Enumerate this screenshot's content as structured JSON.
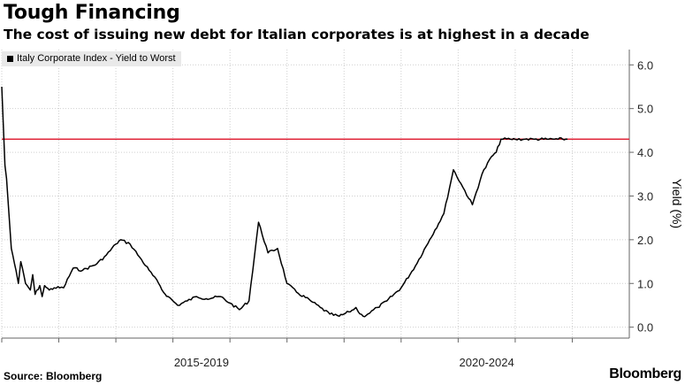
{
  "header": {
    "title": "Tough Financing",
    "subtitle": "The cost of issuing new debt for Italian corporates is at highest in a decade"
  },
  "footer": {
    "source": "Source: Bloomberg",
    "brand": "Bloomberg"
  },
  "colors": {
    "line": "#000000",
    "reference_line": "#e0263a",
    "grid": "#cfcfcf",
    "legend_bg": "#e9e9e9"
  },
  "chart_data": {
    "type": "line",
    "title": "Tough Financing",
    "subtitle": "The cost of issuing new debt for Italian corporates is at highest in a decade",
    "ylabel": "Yield (%)",
    "xlabel": "",
    "legend_position": "top-left",
    "grid": true,
    "ylim": [
      -0.25,
      6.35
    ],
    "yticks": [
      "0.0",
      "1.0",
      "2.0",
      "3.0",
      "4.0",
      "5.0",
      "6.0"
    ],
    "xlim": [
      "2014-01",
      "2024-01"
    ],
    "xtick_labels": [
      "2015-2019",
      "2020-2024"
    ],
    "reference_line": {
      "y": 4.3
    },
    "series": [
      {
        "name": "Italy Corporate Index - Yield to Worst",
        "x": [
          "2014-01",
          "2014-01",
          "2014-01",
          "2014-02",
          "2014-02",
          "2014-03",
          "2014-04",
          "2014-04",
          "2014-05",
          "2014-06",
          "2014-07",
          "2014-07",
          "2014-08",
          "2014-09",
          "2014-09",
          "2014-10",
          "2014-11",
          "2014-12",
          "2015-02",
          "2015-04",
          "2015-06",
          "2015-09",
          "2015-11",
          "2016-01",
          "2016-02",
          "2016-04",
          "2016-06",
          "2016-08",
          "2016-10",
          "2016-11",
          "2016-12",
          "2017-02",
          "2017-04",
          "2017-06",
          "2017-08",
          "2017-11",
          "2018-01",
          "2018-03",
          "2018-05",
          "2018-07",
          "2018-09",
          "2018-11",
          "2019-01",
          "2019-03",
          "2019-06",
          "2019-08",
          "2019-10",
          "2019-12",
          "2020-01",
          "2020-02",
          "2020-03",
          "2020-03",
          "2020-04",
          "2020-05",
          "2020-06",
          "2020-08",
          "2020-10",
          "2021-01",
          "2021-04",
          "2021-07",
          "2021-10",
          "2021-12",
          "2022-02",
          "2022-04",
          "2022-06",
          "2022-08",
          "2022-09",
          "2022-10",
          "2022-12",
          "2023-01",
          "2023-03",
          "2023-05",
          "2023-07",
          "2023-08",
          "2023-10",
          "2023-11",
          "2023-12"
        ],
        "y": [
          5.5,
          4.6,
          3.7,
          3.4,
          2.6,
          1.8,
          1.3,
          1.0,
          1.5,
          1.0,
          0.85,
          1.2,
          0.75,
          0.95,
          0.7,
          0.95,
          0.85,
          0.9,
          0.9,
          1.35,
          1.3,
          1.45,
          1.65,
          1.9,
          2.0,
          1.9,
          1.6,
          1.3,
          1.0,
          0.8,
          0.7,
          0.5,
          0.6,
          0.7,
          0.65,
          0.7,
          0.55,
          0.4,
          0.6,
          2.4,
          1.7,
          1.8,
          1.0,
          0.8,
          0.6,
          0.45,
          0.3,
          0.25,
          0.3,
          0.35,
          0.4,
          0.45,
          0.35,
          0.25,
          0.3,
          0.45,
          0.6,
          0.9,
          1.4,
          2.0,
          2.6,
          3.6,
          3.2,
          2.8,
          3.5,
          3.9,
          4.0,
          4.3,
          4.3,
          4.3,
          4.3,
          4.3,
          4.3,
          4.3,
          4.3,
          4.3,
          4.3
        ],
        "note_excluded": []
      }
    ]
  }
}
